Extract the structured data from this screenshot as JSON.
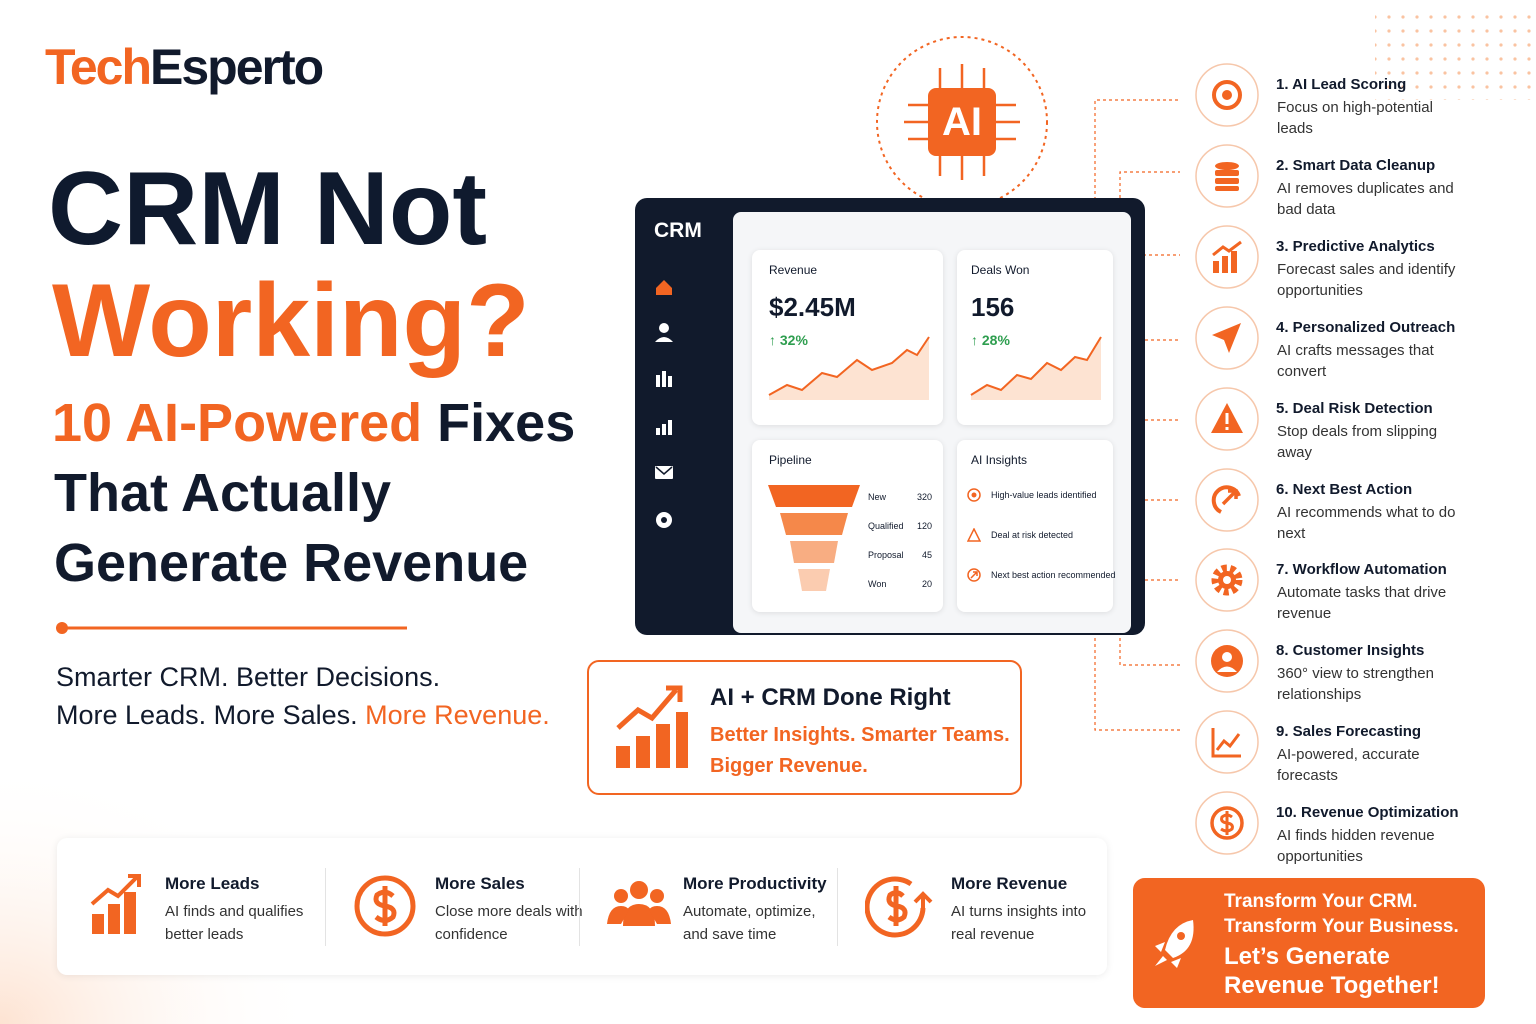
{
  "logo": {
    "part1": "Tech",
    "part2": "Esperto"
  },
  "headline": {
    "line1": "CRM Not",
    "line2": "Working?",
    "line3_highlight": "10 AI-Powered",
    "line3_rest": "Fixes",
    "line4": "That Actually",
    "line5": "Generate Revenue"
  },
  "tagline": {
    "line1": "Smarter CRM. Better Decisions.",
    "line2": "More Leads. More Sales.",
    "line2_highlight": "More Revenue."
  },
  "ai_badge": "AI",
  "dashboard": {
    "title": "CRM",
    "revenue": {
      "label": "Revenue",
      "value": "$2.45M",
      "change": "32%"
    },
    "deals": {
      "label": "Deals Won",
      "value": "156",
      "change": "28%"
    },
    "pipeline": {
      "label": "Pipeline",
      "stages": [
        {
          "name": "New",
          "count": 320
        },
        {
          "name": "Qualified",
          "count": 120
        },
        {
          "name": "Proposal",
          "count": 45
        },
        {
          "name": "Won",
          "count": 20
        }
      ]
    },
    "insights": {
      "label": "AI Insights",
      "items": [
        "High-value leads identified",
        "Deal at risk detected",
        "Next best action recommended"
      ]
    }
  },
  "callout": {
    "title": "AI + CRM Done Right",
    "subtitle": "Better Insights. Smarter Teams. Bigger Revenue."
  },
  "fixes": [
    {
      "title": "1. AI Lead Scoring",
      "desc": "Focus on high-potential leads"
    },
    {
      "title": "2. Smart Data Cleanup",
      "desc": "AI removes duplicates and bad data"
    },
    {
      "title": "3. Predictive Analytics",
      "desc": "Forecast sales and identify opportunities"
    },
    {
      "title": "4. Personalized Outreach",
      "desc": "AI crafts messages that convert"
    },
    {
      "title": "5. Deal Risk Detection",
      "desc": "Stop deals from slipping away"
    },
    {
      "title": "6. Next Best Action",
      "desc": "AI recommends what to do next"
    },
    {
      "title": "7. Workflow Automation",
      "desc": "Automate tasks that drive revenue"
    },
    {
      "title": "8. Customer Insights",
      "desc": "360° view to strengthen relationships"
    },
    {
      "title": "9. Sales Forecasting",
      "desc": "AI-powered, accurate forecasts"
    },
    {
      "title": "10. Revenue Optimization",
      "desc": "AI finds hidden revenue opportunities"
    }
  ],
  "benefits": [
    {
      "title": "More Leads",
      "desc": "AI finds and qualifies better leads"
    },
    {
      "title": "More Sales",
      "desc": "Close more deals with confidence"
    },
    {
      "title": "More Productivity",
      "desc": "Automate, optimize, and save time"
    },
    {
      "title": "More Revenue",
      "desc": "AI turns insights into real revenue"
    }
  ],
  "cta": {
    "line1": "Transform Your CRM.",
    "line2": "Transform Your Business.",
    "line3": "Let’s Generate Revenue Together!"
  }
}
